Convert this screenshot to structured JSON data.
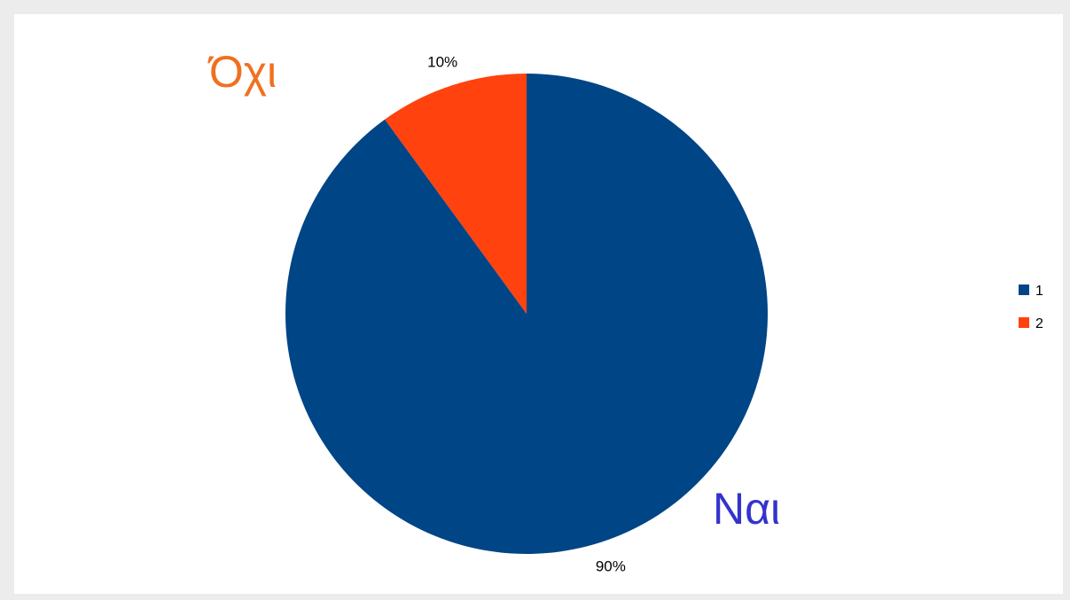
{
  "chart_data": {
    "type": "pie",
    "slices": [
      {
        "label": "1",
        "value": 90,
        "percent_label": "90%",
        "color": "#004586"
      },
      {
        "label": "2",
        "value": 10,
        "percent_label": "10%",
        "color": "#ff420e"
      }
    ],
    "start_angle_deg": 0,
    "direction": "clockwise",
    "legend": {
      "position": "right",
      "entries": [
        "1",
        "2"
      ]
    },
    "annotations": [
      {
        "text": "Ναι",
        "color": "#3333cc"
      },
      {
        "text": "Όχι",
        "color": "#f07020"
      }
    ]
  }
}
